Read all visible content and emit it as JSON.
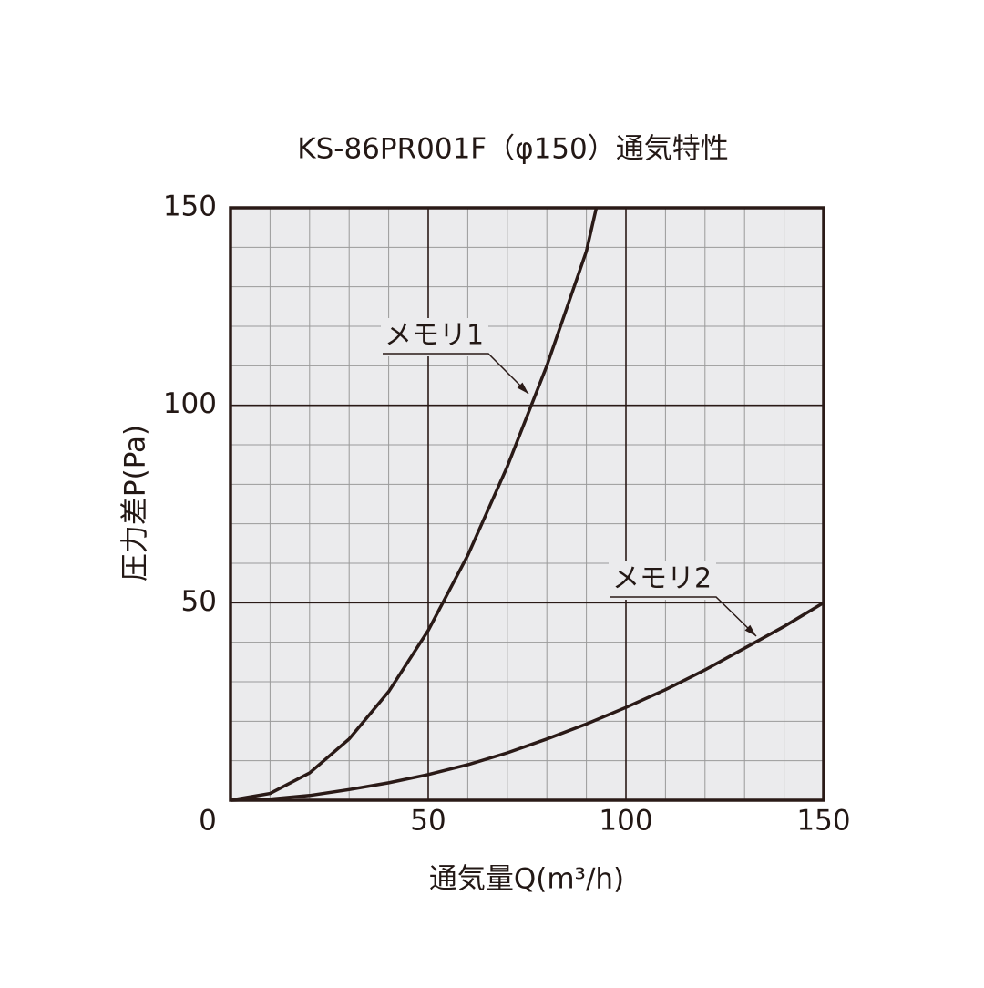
{
  "chart_data": {
    "type": "line",
    "title": "KS-86PR001F（φ150）通気特性",
    "x_label": "通気量Q(m³/h)",
    "y_label": "圧力差P(Pa)",
    "xlim": [
      0,
      150
    ],
    "ylim": [
      0,
      150
    ],
    "xticks": [
      0,
      50,
      100,
      150
    ],
    "yticks": [
      50,
      100,
      150
    ],
    "minor_xticks": [
      10,
      20,
      30,
      40,
      60,
      70,
      80,
      90,
      110,
      120,
      130,
      140
    ],
    "minor_yticks": [
      10,
      20,
      30,
      40,
      60,
      70,
      80,
      90,
      110,
      120,
      130,
      140
    ],
    "grid": true,
    "series": [
      {
        "name": "メモリ1",
        "color": "#2a1a17",
        "x": [
          0,
          10,
          20,
          30,
          40,
          50,
          60,
          70,
          80,
          90,
          92.5
        ],
        "values": [
          0,
          1.7,
          6.9,
          15.5,
          27.5,
          43,
          62,
          84.5,
          110,
          139,
          150
        ]
      },
      {
        "name": "メモリ2",
        "color": "#2a1a17",
        "x": [
          0,
          10,
          20,
          30,
          40,
          50,
          60,
          70,
          80,
          90,
          100,
          110,
          120,
          130,
          140,
          150
        ],
        "values": [
          0,
          0.3,
          1.2,
          2.7,
          4.4,
          6.5,
          9,
          12,
          15.5,
          19.3,
          23.5,
          28,
          33,
          38.5,
          44,
          50
        ]
      }
    ]
  }
}
